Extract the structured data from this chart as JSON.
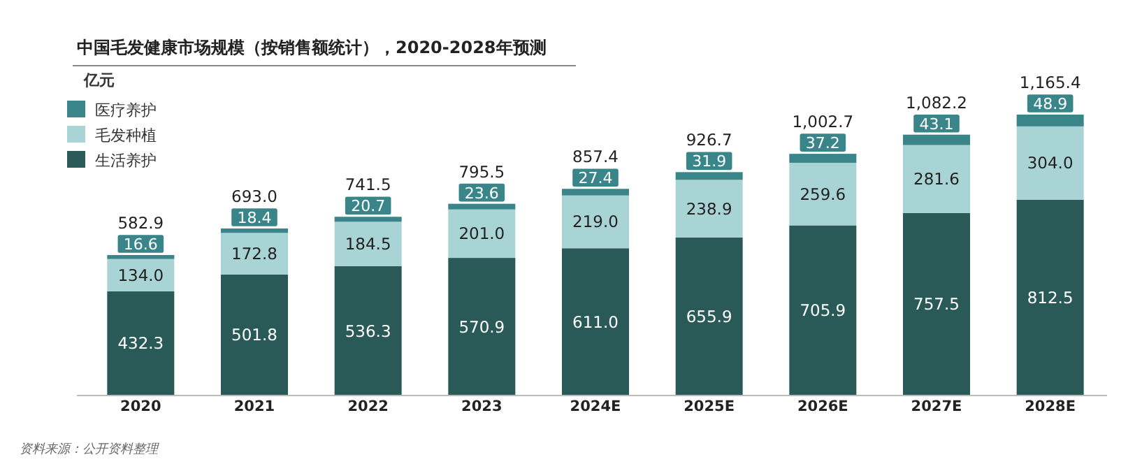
{
  "chart_data": {
    "type": "bar",
    "stacked": true,
    "title": "中国毛发健康市场规模（按销售额统计），2020-2028年预测",
    "ylabel": "亿元",
    "categories": [
      "2020",
      "2021",
      "2022",
      "2023",
      "2024E",
      "2025E",
      "2026E",
      "2027E",
      "2028E"
    ],
    "series": [
      {
        "name": "生活养护",
        "color": "#2a5a58",
        "values": [
          432.3,
          501.8,
          536.3,
          570.9,
          611.0,
          655.9,
          705.9,
          757.5,
          812.5
        ],
        "value_labels": [
          "432.3",
          "501.8",
          "536.3",
          "570.9",
          "611.0",
          "655.9",
          "705.9",
          "757.5",
          "812.5"
        ]
      },
      {
        "name": "毛发种植",
        "color": "#a8d4d5",
        "values": [
          134.0,
          172.8,
          184.5,
          201.0,
          219.0,
          238.9,
          259.6,
          281.6,
          304.0
        ],
        "value_labels": [
          "134.0",
          "172.8",
          "184.5",
          "201.0",
          "219.0",
          "238.9",
          "259.6",
          "281.6",
          "304.0"
        ]
      },
      {
        "name": "医疗养护",
        "color": "#3a8589",
        "values": [
          16.6,
          18.4,
          20.7,
          23.6,
          27.4,
          31.9,
          37.2,
          43.1,
          48.9
        ],
        "value_labels": [
          "16.6",
          "18.4",
          "20.7",
          "23.6",
          "27.4",
          "31.9",
          "37.2",
          "43.1",
          "48.9"
        ]
      }
    ],
    "totals": [
      "582.9",
      "693.0",
      "741.5",
      "795.5",
      "857.4",
      "926.7",
      "1,002.7",
      "1,082.2",
      "1,165.4"
    ],
    "legend": "top left",
    "annotations": [
      "资料来源：公开资料整理"
    ]
  }
}
